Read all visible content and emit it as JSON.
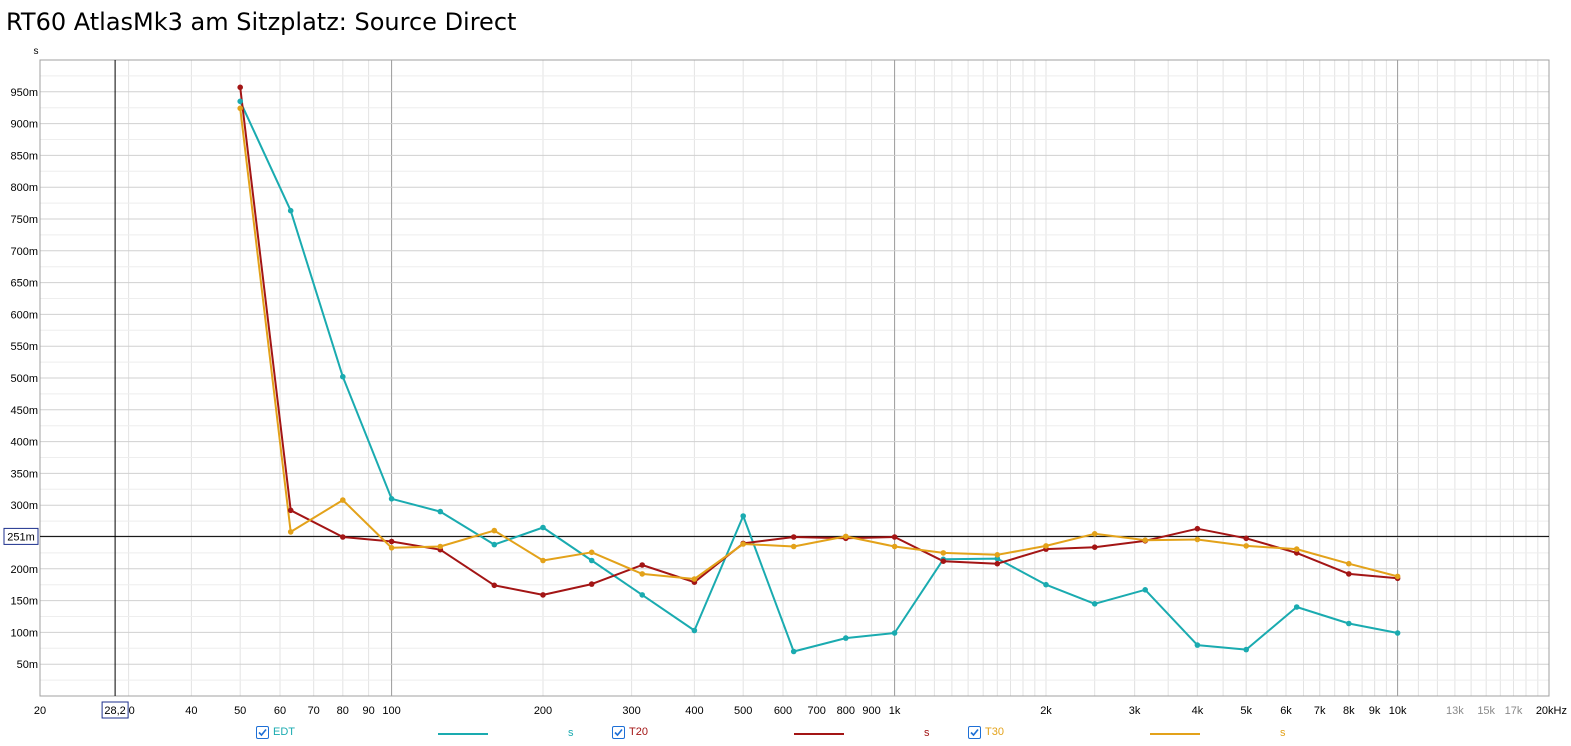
{
  "title": "RT60 AtlasMk3 am Sitzplatz: Source Direct",
  "chart_data": {
    "type": "line",
    "title": "RT60 AtlasMk3 am Sitzplatz: Source Direct",
    "ylabel": "s",
    "xlabel": "",
    "x_scale": "log",
    "xlim": [
      20,
      20000
    ],
    "ylim": [
      0,
      1.0
    ],
    "grid": true,
    "cursor": {
      "x": 28.2,
      "x_label": "28,2",
      "y": 0.251,
      "y_label": "251m"
    },
    "y_ticks": [
      {
        "v": 0.05,
        "label": "50m"
      },
      {
        "v": 0.1,
        "label": "100m"
      },
      {
        "v": 0.15,
        "label": "150m"
      },
      {
        "v": 0.2,
        "label": "200m"
      },
      {
        "v": 0.25,
        "label": "250m"
      },
      {
        "v": 0.3,
        "label": "300m"
      },
      {
        "v": 0.35,
        "label": "350m"
      },
      {
        "v": 0.4,
        "label": "400m"
      },
      {
        "v": 0.45,
        "label": "450m"
      },
      {
        "v": 0.5,
        "label": "500m"
      },
      {
        "v": 0.55,
        "label": "550m"
      },
      {
        "v": 0.6,
        "label": "600m"
      },
      {
        "v": 0.65,
        "label": "650m"
      },
      {
        "v": 0.7,
        "label": "700m"
      },
      {
        "v": 0.75,
        "label": "750m"
      },
      {
        "v": 0.8,
        "label": "800m"
      },
      {
        "v": 0.85,
        "label": "850m"
      },
      {
        "v": 0.9,
        "label": "900m"
      },
      {
        "v": 0.95,
        "label": "950m"
      }
    ],
    "x_ticks": [
      {
        "v": 20,
        "label": "20"
      },
      {
        "v": 30,
        "label": "30"
      },
      {
        "v": 40,
        "label": "40"
      },
      {
        "v": 50,
        "label": "50"
      },
      {
        "v": 60,
        "label": "60"
      },
      {
        "v": 70,
        "label": "70"
      },
      {
        "v": 80,
        "label": "80"
      },
      {
        "v": 90,
        "label": "90"
      },
      {
        "v": 100,
        "label": "100"
      },
      {
        "v": 200,
        "label": "200"
      },
      {
        "v": 300,
        "label": "300"
      },
      {
        "v": 400,
        "label": "400"
      },
      {
        "v": 500,
        "label": "500"
      },
      {
        "v": 600,
        "label": "600"
      },
      {
        "v": 700,
        "label": "700"
      },
      {
        "v": 800,
        "label": "800"
      },
      {
        "v": 900,
        "label": "900"
      },
      {
        "v": 1000,
        "label": "1k"
      },
      {
        "v": 2000,
        "label": "2k"
      },
      {
        "v": 3000,
        "label": "3k"
      },
      {
        "v": 4000,
        "label": "4k"
      },
      {
        "v": 5000,
        "label": "5k"
      },
      {
        "v": 6000,
        "label": "6k"
      },
      {
        "v": 7000,
        "label": "7k"
      },
      {
        "v": 8000,
        "label": "8k"
      },
      {
        "v": 9000,
        "label": "9k"
      },
      {
        "v": 10000,
        "label": "10k"
      },
      {
        "v": 13000,
        "label": "13k",
        "muted": true
      },
      {
        "v": 15000,
        "label": "15k",
        "muted": true
      },
      {
        "v": 17000,
        "label": "17k",
        "muted": true
      },
      {
        "v": 20000,
        "label": "20kHz"
      }
    ],
    "x": [
      50,
      63,
      80,
      100,
      125,
      160,
      200,
      250,
      315,
      400,
      500,
      630,
      800,
      1000,
      1250,
      1600,
      2000,
      2500,
      3150,
      4000,
      5000,
      6300,
      8000,
      10000
    ],
    "series": [
      {
        "name": "EDT",
        "color": "#1aabb0",
        "unit": "s",
        "values": [
          0.935,
          0.763,
          0.502,
          0.31,
          0.29,
          0.238,
          0.265,
          0.213,
          0.159,
          0.103,
          0.283,
          0.07,
          0.091,
          0.099,
          0.215,
          0.216,
          0.175,
          0.145,
          0.167,
          0.08,
          0.073,
          0.14,
          0.114,
          0.099
        ]
      },
      {
        "name": "T20",
        "color": "#a31515",
        "unit": "s",
        "values": [
          0.957,
          0.292,
          0.25,
          0.243,
          0.23,
          0.174,
          0.159,
          0.176,
          0.206,
          0.179,
          0.24,
          0.25,
          0.248,
          0.25,
          0.212,
          0.208,
          0.231,
          0.234,
          0.244,
          0.263,
          0.248,
          0.225,
          0.192,
          0.185
        ]
      },
      {
        "name": "T30",
        "color": "#e3a21a",
        "unit": "s",
        "values": [
          0.924,
          0.258,
          0.308,
          0.233,
          0.235,
          0.26,
          0.213,
          0.226,
          0.192,
          0.184,
          0.239,
          0.235,
          0.251,
          0.235,
          0.225,
          0.222,
          0.236,
          0.255,
          0.245,
          0.246,
          0.236,
          0.231,
          0.208,
          0.188
        ]
      }
    ]
  }
}
